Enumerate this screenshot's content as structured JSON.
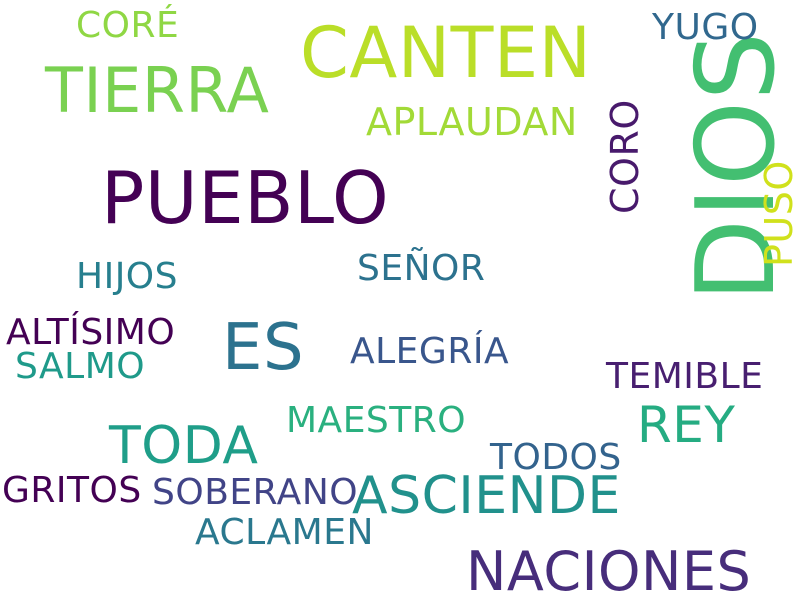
{
  "words": {
    "dios": {
      "text": "DIOS",
      "color": "#43bf71"
    },
    "pueblo": {
      "text": "PUEBLO",
      "color": "#440154"
    },
    "canten": {
      "text": "CANTEN",
      "color": "#bade28"
    },
    "tierra": {
      "text": "TIERRA",
      "color": "#7ad151"
    },
    "es": {
      "text": "ES",
      "color": "#2c728e"
    },
    "naciones": {
      "text": "NACIONES",
      "color": "#472d7b"
    },
    "asciende": {
      "text": "ASCIENDE",
      "color": "#21918c"
    },
    "toda": {
      "text": "TODA",
      "color": "#1f9e89"
    },
    "rey": {
      "text": "REY",
      "color": "#25ac82"
    },
    "aplaudan": {
      "text": "APLAUDAN",
      "color": "#a2da37"
    },
    "coro": {
      "text": "CORO",
      "color": "#481a6c"
    },
    "puso": {
      "text": "PUSO",
      "color": "#d0e11c"
    },
    "yugo": {
      "text": "YUGO",
      "color": "#31688e"
    },
    "core": {
      "text": "CORÉ",
      "color": "#8fd744"
    },
    "hijos": {
      "text": "HIJOS",
      "color": "#277f8e"
    },
    "senor": {
      "text": "SEÑOR",
      "color": "#2c728e"
    },
    "altisimo": {
      "text": "ALTÍSIMO",
      "color": "#440154"
    },
    "salmo": {
      "text": "SALMO",
      "color": "#1f9a8a"
    },
    "alegria": {
      "text": "ALEGRÍA",
      "color": "#39568c"
    },
    "temible": {
      "text": "TEMIBLE",
      "color": "#481f70"
    },
    "maestro": {
      "text": "MAESTRO",
      "color": "#2ab07f"
    },
    "todos": {
      "text": "TODOS",
      "color": "#33638d"
    },
    "gritos": {
      "text": "GRITOS",
      "color": "#440154"
    },
    "soberano": {
      "text": "SOBERANO",
      "color": "#414487"
    },
    "aclamen": {
      "text": "ACLAMEN",
      "color": "#2a788e"
    }
  }
}
